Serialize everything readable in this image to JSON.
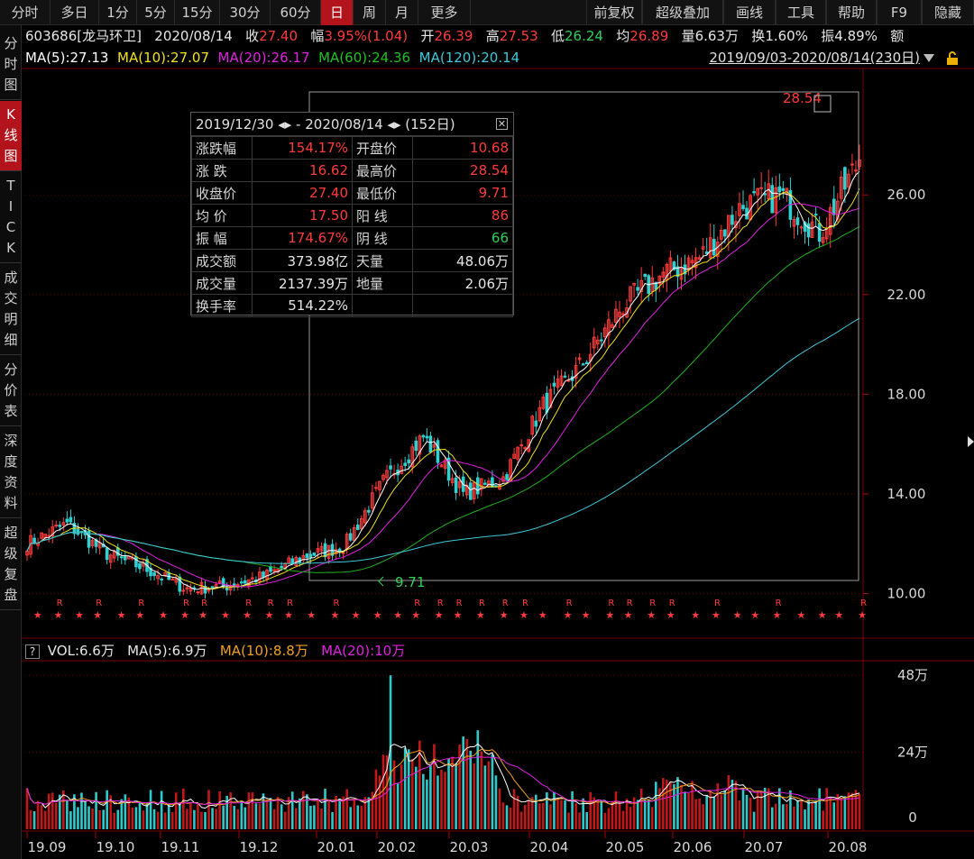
{
  "toolbar": {
    "left_items": [
      "分时",
      "多日",
      "1分",
      "5分",
      "15分",
      "30分",
      "60分",
      "日",
      "周",
      "月",
      "更多"
    ],
    "active": "日",
    "right_items": [
      "前复权",
      "超级叠加",
      "画线",
      "工具",
      "帮助",
      "F9",
      "隐藏"
    ]
  },
  "left_tabs": [
    {
      "label": "分时图",
      "active": false
    },
    {
      "label": "K线图",
      "active": true
    },
    {
      "label": "TICK",
      "active": false
    },
    {
      "label": "成交明细",
      "active": false
    },
    {
      "label": "分价表",
      "active": false
    },
    {
      "label": "深度资料",
      "active": false
    },
    {
      "label": "超级复盘",
      "active": false
    }
  ],
  "quote": {
    "code_name": "603686[龙马环卫]",
    "date": "2020/08/14",
    "close_label": "收",
    "close": "27.40",
    "change_label": "幅",
    "change": "3.95%(1.04)",
    "open_label": "开",
    "open": "26.39",
    "high_label": "高",
    "high": "27.53",
    "low_label": "低",
    "low": "26.24",
    "avg_label": "均",
    "avg": "26.89",
    "vol_label": "量",
    "vol": "6.63万",
    "turnover_label": "换",
    "turnover": "1.60%",
    "amplitude_label": "振",
    "amplitude": "4.89%",
    "amount_label": "额"
  },
  "ma": {
    "ma5": "MA(5):27.13",
    "ma10": "MA(10):27.07",
    "ma20": "MA(20):26.17",
    "ma60": "MA(60):24.36",
    "ma120": "MA(120):20.14"
  },
  "date_range": "2019/09/03-2020/08/14(230日)",
  "colors": {
    "up": "#ff3b3b",
    "down": "#2fd0d0",
    "ma5": "#ffffff",
    "ma10": "#f0e020",
    "ma20": "#e020e0",
    "ma60": "#20b020",
    "ma120": "#40c8d8",
    "active": "#b3141b"
  },
  "stats": {
    "header": "2019/12/30 ◂▸ - 2020/08/14 ◂▸  (152日)",
    "rows": [
      {
        "l1": "涨跌幅",
        "v1": "154.17%",
        "l2": "开盘价",
        "v2": "10.68",
        "c1": "red",
        "c2": "red"
      },
      {
        "l1": "涨 跌",
        "v1": "16.62",
        "l2": "最高价",
        "v2": "28.54",
        "c1": "red",
        "c2": "red"
      },
      {
        "l1": "收盘价",
        "v1": "27.40",
        "l2": "最低价",
        "v2": "9.71",
        "c1": "red",
        "c2": "red"
      },
      {
        "l1": "均 价",
        "v1": "17.50",
        "l2": "阳 线",
        "v2": "86",
        "c1": "red",
        "c2": "red"
      },
      {
        "l1": "振 幅",
        "v1": "174.67%",
        "l2": "阴 线",
        "v2": "66",
        "c1": "red",
        "c2": "green"
      },
      {
        "l1": "成交额",
        "v1": "373.98亿",
        "l2": "天量",
        "v2": "48.06万",
        "c1": "white",
        "c2": "white"
      },
      {
        "l1": "成交量",
        "v1": "2137.39万",
        "l2": "地量",
        "v2": "2.06万",
        "c1": "white",
        "c2": "white"
      },
      {
        "l1": "换手率",
        "v1": "514.22%",
        "l2": "",
        "v2": "",
        "c1": "white",
        "c2": "white"
      }
    ]
  },
  "price_axis": {
    "labels": [
      "26.00",
      "22.00",
      "18.00",
      "14.00",
      "10.00"
    ],
    "values": [
      26,
      22,
      18,
      14,
      10
    ]
  },
  "high_marker": "28.54",
  "low_marker": "9.71",
  "volume": {
    "header_vol": "VOL:6.6万",
    "header_ma5": "MA(5):6.9万",
    "header_ma10": "MA(10):8.8万",
    "header_ma20": "MA(20):10万",
    "axis_labels": [
      "48万",
      "24万",
      "0"
    ],
    "axis_values": [
      48,
      24,
      0
    ]
  },
  "x_axis": [
    "19.09",
    "19.10",
    "19.11",
    "19.12",
    "20.01",
    "20.02",
    "20.03",
    "20.04",
    "20.05",
    "20.06",
    "20.07",
    "20.08"
  ],
  "chart_data": {
    "type": "candlestick",
    "price_ylim": [
      8.5,
      31
    ],
    "volume_ylim": [
      0,
      52
    ],
    "approx_close_series_by_month": [
      {
        "month": "19.09",
        "close": 12.2
      },
      {
        "month": "19.10",
        "close": 11.4
      },
      {
        "month": "19.11",
        "close": 10.3
      },
      {
        "month": "19.12",
        "close": 10.7
      },
      {
        "month": "20.01",
        "close": 11.6
      },
      {
        "month": "20.02",
        "close": 14.5
      },
      {
        "month": "20.03",
        "close": 14.0
      },
      {
        "month": "20.04",
        "close": 17.5
      },
      {
        "month": "20.05",
        "close": 21.5
      },
      {
        "month": "20.06",
        "close": 23.5
      },
      {
        "month": "20.07",
        "close": 26.0
      },
      {
        "month": "20.08",
        "close": 27.4
      }
    ]
  }
}
